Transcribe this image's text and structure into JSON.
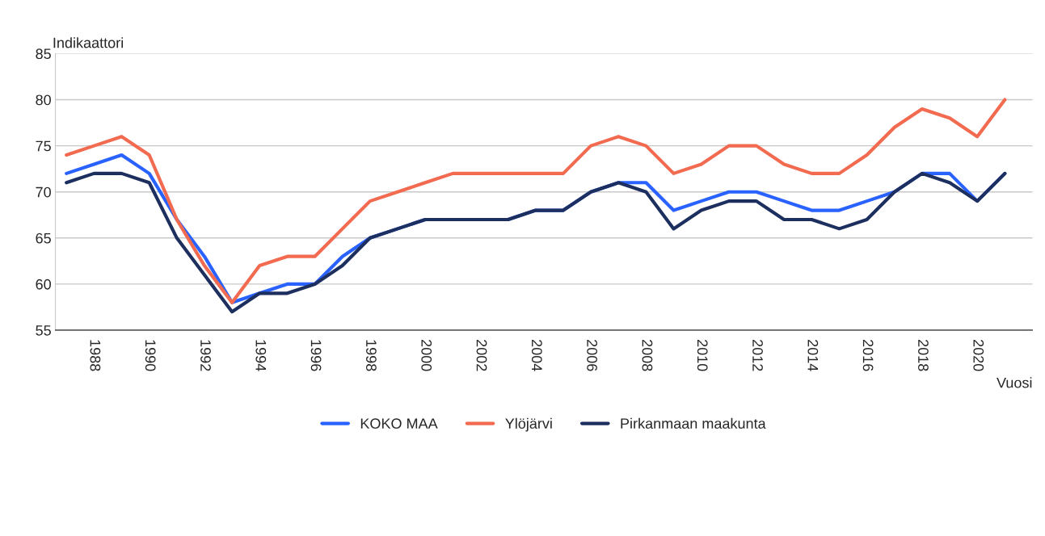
{
  "chart_data": {
    "type": "line",
    "ylabel": "Indikaattori",
    "xlabel": "Vuosi",
    "x": [
      1987,
      1988,
      1989,
      1990,
      1991,
      1992,
      1993,
      1994,
      1995,
      1996,
      1997,
      1998,
      1999,
      2000,
      2001,
      2002,
      2003,
      2004,
      2005,
      2006,
      2007,
      2008,
      2009,
      2010,
      2011,
      2012,
      2013,
      2014,
      2015,
      2016,
      2017,
      2018,
      2019,
      2020,
      2021
    ],
    "series": [
      {
        "name": "KOKO MAA",
        "color": "#2962ff",
        "values": [
          72,
          73,
          74,
          72,
          67,
          63,
          58,
          59,
          60,
          60,
          63,
          65,
          66,
          67,
          null,
          null,
          67,
          68,
          68,
          70,
          71,
          71,
          68,
          69,
          70,
          70,
          69,
          68,
          68,
          69,
          70,
          72,
          72,
          69,
          72
        ]
      },
      {
        "name": "Ylöjärvi",
        "color": "#f26b50",
        "values": [
          74,
          75,
          76,
          74,
          67,
          62,
          58,
          62,
          63,
          63,
          66,
          69,
          70,
          71,
          72,
          72,
          72,
          72,
          72,
          75,
          76,
          75,
          72,
          73,
          75,
          75,
          73,
          72,
          72,
          74,
          77,
          79,
          78,
          76,
          80
        ]
      },
      {
        "name": "Pirkanmaan maakunta",
        "color": "#1c2f5e",
        "values": [
          71,
          72,
          72,
          71,
          65,
          61,
          57,
          59,
          59,
          60,
          62,
          65,
          66,
          67,
          67,
          67,
          67,
          68,
          68,
          70,
          71,
          70,
          66,
          68,
          69,
          69,
          67,
          67,
          66,
          67,
          70,
          72,
          71,
          69,
          72
        ]
      }
    ],
    "xlim": [
      1986.6,
      2022
    ],
    "xticks": [
      1988,
      1990,
      1992,
      1994,
      1996,
      1998,
      2000,
      2002,
      2004,
      2006,
      2008,
      2010,
      2012,
      2014,
      2016,
      2018,
      2020
    ],
    "ylim": [
      55,
      85
    ],
    "yticks": [
      55,
      60,
      65,
      70,
      75,
      80,
      85
    ],
    "grid": "y",
    "legend": "bottom",
    "marker": "none",
    "line_style": "solid"
  }
}
